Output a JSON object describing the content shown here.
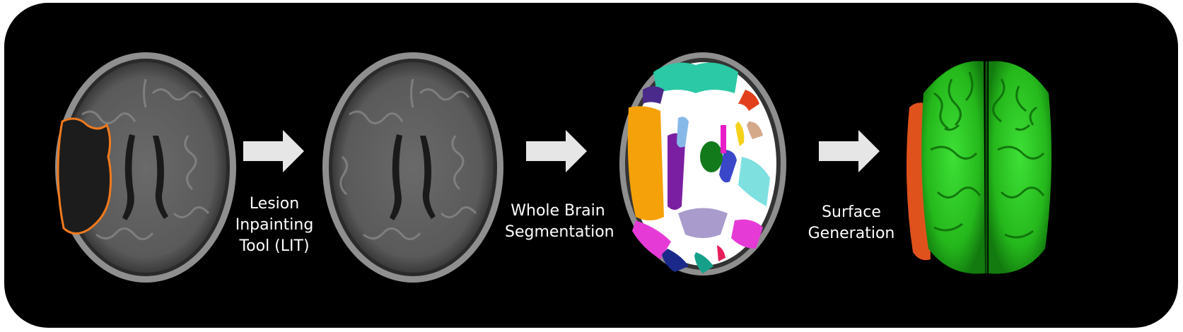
{
  "pipeline": {
    "steps": [
      {
        "caption_lines": [
          "Lesion",
          "Inpainting",
          "Tool (LIT)"
        ]
      },
      {
        "caption_lines": [
          "Whole Brain",
          "Segmentation"
        ]
      },
      {
        "caption_lines": [
          "Surface",
          "Generation"
        ]
      }
    ],
    "images": [
      "mri-axial-with-lesion-outline",
      "mri-axial-inpainted",
      "segmentation-label-map",
      "cortical-surface-render"
    ]
  },
  "colors": {
    "background": "#000000",
    "lesion_outline": "#f07a1e",
    "arrow": "#e6e6e6",
    "surface_green": "#27c21e",
    "surface_orange": "#e0521c",
    "mri_gray": "#5c5c5c"
  }
}
